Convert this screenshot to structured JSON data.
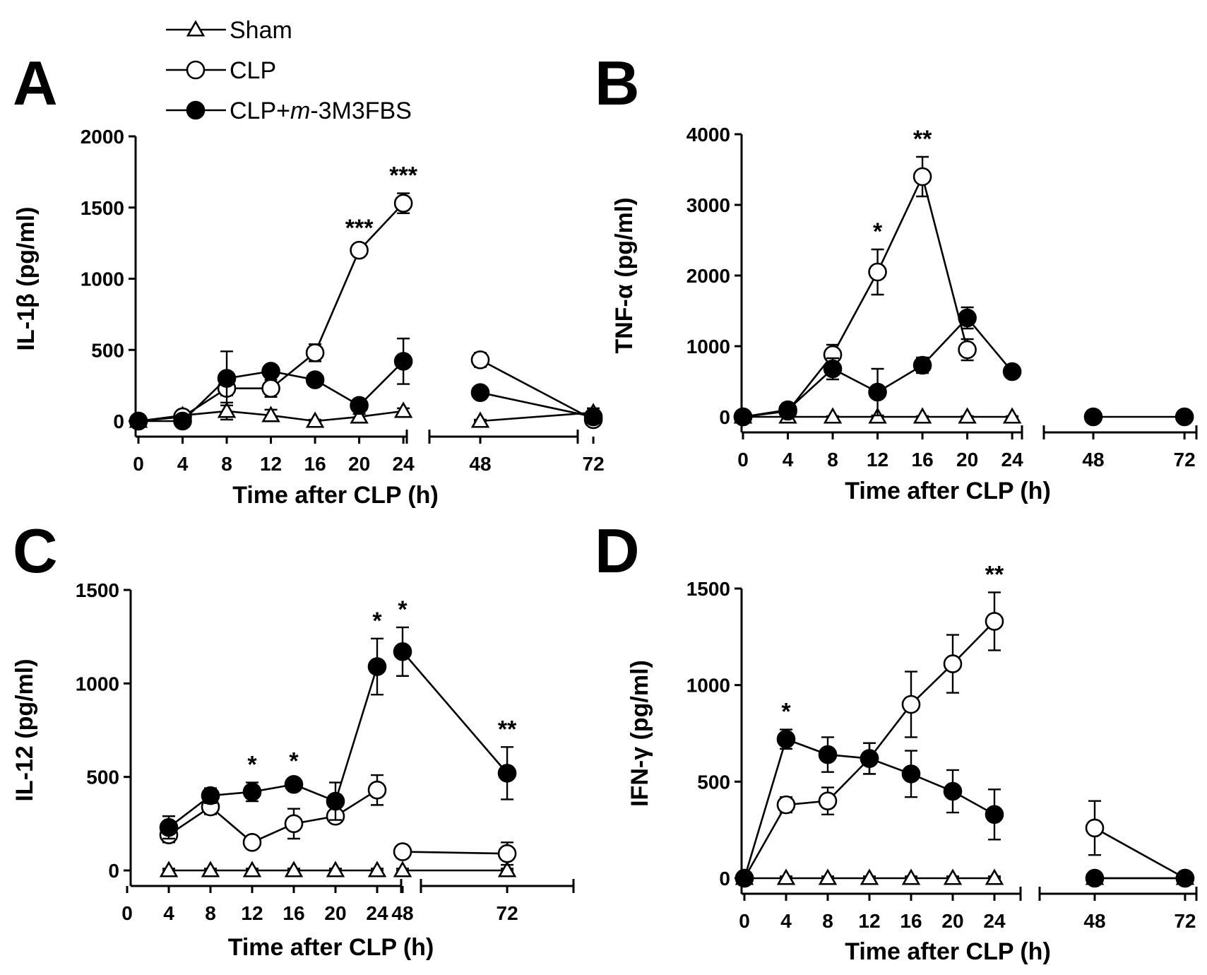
{
  "legend": [
    {
      "key": "sham",
      "label": "Sham",
      "marker": "triangle-open"
    },
    {
      "key": "clp",
      "label": "CLP",
      "marker": "circle-open"
    },
    {
      "key": "treat",
      "label": "CLP+m-3M3FBS",
      "label_prefix": "CLP+",
      "label_italic": "m",
      "label_suffix": "-3M3FBS",
      "marker": "circle-filled"
    }
  ],
  "chart_data": [
    {
      "panel": "A",
      "type": "line",
      "ylabel": "IL-1β (pg/ml)",
      "xlabel": "Time after CLP (h)",
      "ylim": [
        0,
        2000
      ],
      "yticks": [
        0,
        500,
        1000,
        1500,
        2000
      ],
      "xticks_left": [
        0,
        4,
        8,
        12,
        16,
        20,
        24
      ],
      "xticks_right": [
        48,
        72
      ],
      "series": [
        {
          "name": "Sham",
          "x": [
            0,
            4,
            8,
            12,
            16,
            20,
            24,
            48,
            72
          ],
          "y": [
            0,
            40,
            70,
            40,
            0,
            30,
            70,
            0,
            60
          ],
          "err": [
            10,
            20,
            60,
            40,
            10,
            20,
            20,
            10,
            30
          ]
        },
        {
          "name": "CLP",
          "x": [
            0,
            4,
            8,
            12,
            16,
            20,
            24,
            48,
            72
          ],
          "y": [
            0,
            30,
            230,
            230,
            480,
            1200,
            1530,
            430,
            10
          ],
          "err": [
            10,
            30,
            50,
            60,
            60,
            30,
            70,
            50,
            20
          ]
        },
        {
          "name": "CLP+m-3M3FBS",
          "x": [
            0,
            4,
            8,
            12,
            16,
            20,
            24,
            48,
            72
          ],
          "y": [
            0,
            0,
            300,
            350,
            290,
            110,
            420,
            200,
            30
          ],
          "err": [
            10,
            10,
            190,
            20,
            20,
            20,
            160,
            40,
            20
          ]
        }
      ],
      "annotations": [
        {
          "x": 20,
          "text": "***"
        },
        {
          "x": 24,
          "text": "***"
        }
      ]
    },
    {
      "panel": "B",
      "type": "line",
      "ylabel": "TNF-α (pg/ml)",
      "xlabel": "Time after CLP (h)",
      "ylim": [
        0,
        4000
      ],
      "yticks": [
        0,
        1000,
        2000,
        3000,
        4000
      ],
      "xticks_left": [
        0,
        4,
        8,
        12,
        16,
        20,
        24
      ],
      "xticks_right": [
        48,
        72
      ],
      "series": [
        {
          "name": "Sham",
          "x": [
            0,
            4,
            8,
            12,
            16,
            20,
            24
          ],
          "y": [
            0,
            0,
            0,
            0,
            0,
            0,
            0
          ],
          "err": [
            10,
            10,
            10,
            10,
            10,
            10,
            10
          ]
        },
        {
          "name": "CLP",
          "x": [
            0,
            4,
            8,
            12,
            16,
            20
          ],
          "y": [
            0,
            80,
            880,
            2050,
            3400,
            950
          ],
          "err": [
            30,
            100,
            140,
            320,
            280,
            150
          ]
        },
        {
          "name": "CLP+m-3M3FBS",
          "x": [
            0,
            4,
            8,
            12,
            16,
            20,
            24,
            48,
            72
          ],
          "y": [
            0,
            100,
            680,
            350,
            730,
            1400,
            640,
            0,
            0
          ],
          "err": [
            30,
            80,
            150,
            330,
            110,
            150,
            60,
            20,
            20
          ]
        }
      ],
      "annotations": [
        {
          "x": 12,
          "text": "*"
        },
        {
          "x": 16,
          "text": "**"
        }
      ]
    },
    {
      "panel": "C",
      "type": "line",
      "ylabel": "IL-12 (pg/ml)",
      "xlabel": "Time after CLP (h)",
      "ylim": [
        0,
        1500
      ],
      "yticks": [
        0,
        500,
        1000,
        1500
      ],
      "xticks_left": [
        0,
        4,
        8,
        12,
        16,
        20,
        24
      ],
      "xticks_right": [
        48,
        72
      ],
      "series": [
        {
          "name": "Sham",
          "x": [
            4,
            8,
            12,
            16,
            20,
            24,
            48,
            72
          ],
          "y": [
            0,
            0,
            0,
            0,
            0,
            0,
            0,
            0
          ],
          "err": [
            10,
            10,
            10,
            10,
            10,
            10,
            10,
            10
          ]
        },
        {
          "name": "CLP",
          "x": [
            4,
            8,
            12,
            16,
            20,
            24,
            48,
            72
          ],
          "y": [
            190,
            340,
            150,
            250,
            290,
            430,
            100,
            90
          ],
          "err": [
            40,
            40,
            20,
            80,
            20,
            80,
            20,
            60
          ]
        },
        {
          "name": "CLP+m-3M3FBS",
          "x": [
            4,
            8,
            12,
            16,
            20,
            24,
            48,
            72
          ],
          "y": [
            230,
            400,
            420,
            460,
            370,
            1090,
            1170,
            520
          ],
          "err": [
            60,
            40,
            50,
            30,
            100,
            150,
            130,
            140
          ]
        }
      ],
      "annotations": [
        {
          "x": 12,
          "text": "*"
        },
        {
          "x": 16,
          "text": "*"
        },
        {
          "x": 24,
          "text": "*"
        },
        {
          "x": 48,
          "text": "*"
        },
        {
          "x": 72,
          "text": "**"
        }
      ]
    },
    {
      "panel": "D",
      "type": "line",
      "ylabel": "IFN-γ (pg/ml)",
      "xlabel": "Time after CLP (h)",
      "ylim": [
        0,
        1500
      ],
      "yticks": [
        0,
        500,
        1000,
        1500
      ],
      "xticks_left": [
        0,
        4,
        8,
        12,
        16,
        20,
        24
      ],
      "xticks_right": [
        48,
        72
      ],
      "series": [
        {
          "name": "Sham",
          "x": [
            0,
            4,
            8,
            12,
            16,
            20,
            24,
            48,
            72
          ],
          "y": [
            0,
            0,
            0,
            0,
            0,
            0,
            0,
            0,
            0
          ],
          "err": [
            10,
            10,
            10,
            10,
            10,
            10,
            10,
            10,
            10
          ]
        },
        {
          "name": "CLP",
          "x": [
            0,
            4,
            8,
            12,
            16,
            20,
            24,
            48,
            72
          ],
          "y": [
            0,
            380,
            400,
            620,
            900,
            1110,
            1330,
            260,
            0
          ],
          "err": [
            20,
            40,
            70,
            80,
            170,
            150,
            150,
            140,
            20
          ]
        },
        {
          "name": "CLP+m-3M3FBS",
          "x": [
            0,
            4,
            8,
            12,
            16,
            20,
            24,
            48,
            72
          ],
          "y": [
            0,
            720,
            640,
            620,
            540,
            450,
            330,
            0,
            0
          ],
          "err": [
            20,
            50,
            90,
            80,
            120,
            110,
            130,
            20,
            20
          ]
        }
      ],
      "annotations": [
        {
          "x": 4,
          "text": "*"
        },
        {
          "x": 24,
          "text": "**"
        }
      ]
    }
  ]
}
